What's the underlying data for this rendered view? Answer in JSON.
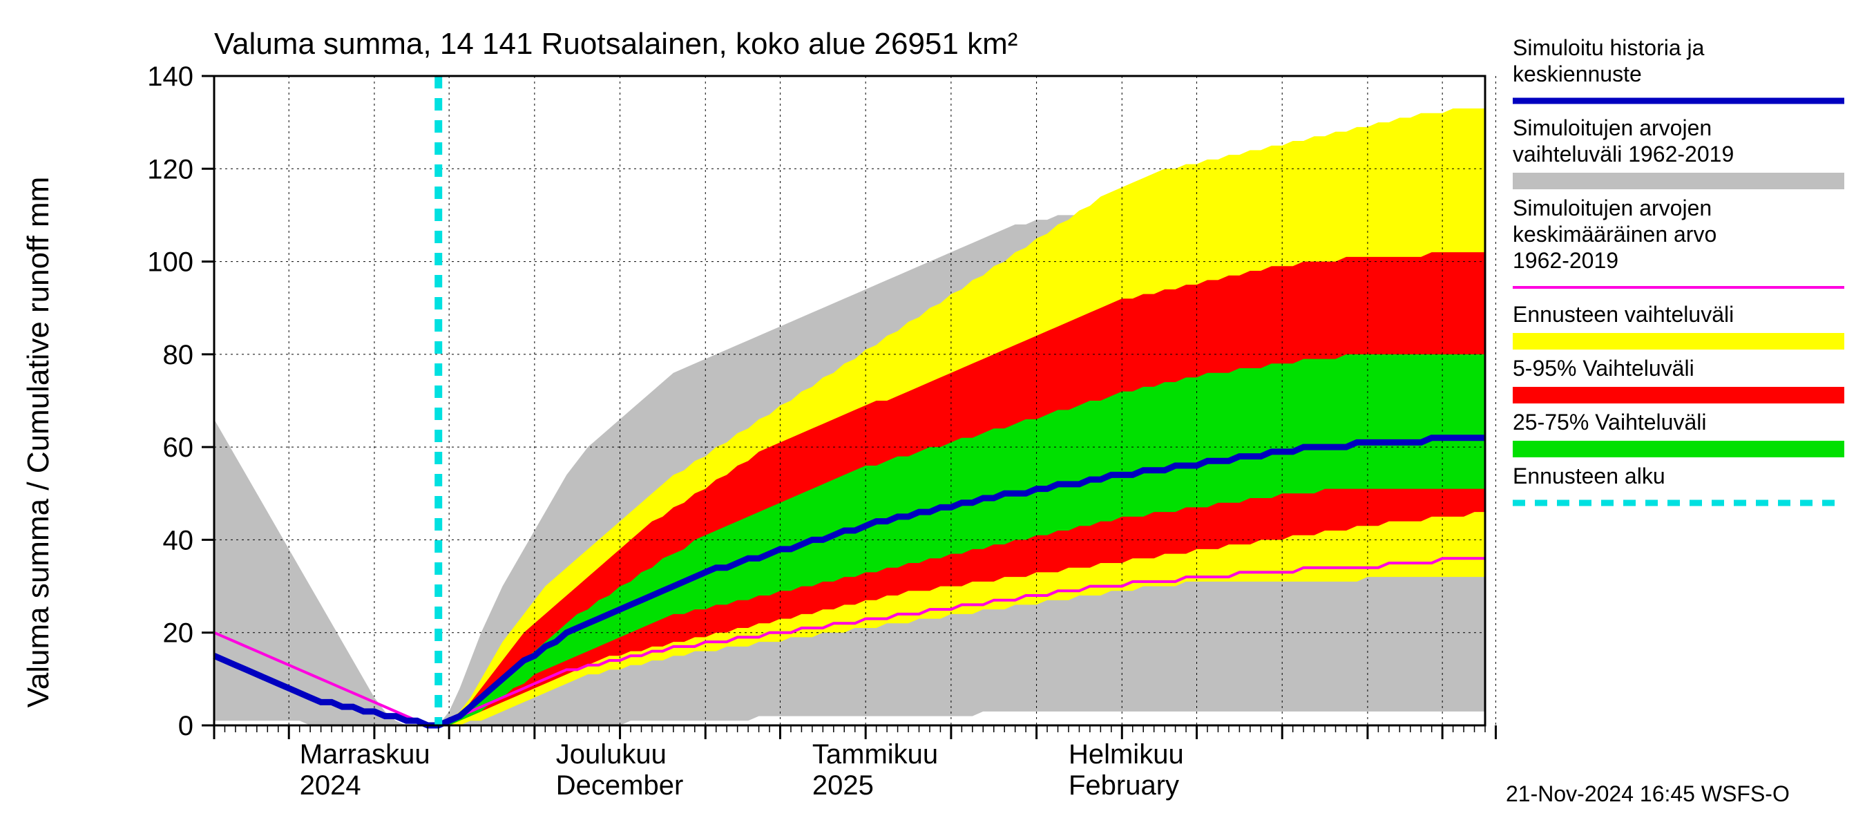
{
  "chart": {
    "type": "area",
    "title": "Valuma summa, 14 141 Ruotsalainen, koko alue 26951 km²",
    "ylabel": "Valuma summa / Cumulative runoff    mm",
    "footer": "21-Nov-2024 16:45 WSFS-O",
    "background_color": "#ffffff",
    "grid_color": "#000000",
    "grid_dash": "3 5",
    "title_fontsize": 44,
    "ylabel_fontsize": 44,
    "tick_fontsize": 40,
    "legend_fontsize": 32,
    "ylim": [
      0,
      140
    ],
    "ytick_step": 20,
    "yticks": [
      0,
      20,
      40,
      60,
      80,
      100,
      120,
      140
    ],
    "x_n": 120,
    "forecast_start_x": 21,
    "x_month_labels": [
      {
        "x": 8,
        "line1": "Marraskuu",
        "line2": "2024"
      },
      {
        "x": 32,
        "line1": "Joulukuu",
        "line2": "December"
      },
      {
        "x": 56,
        "line1": "Tammikuu",
        "line2": "2025"
      },
      {
        "x": 80,
        "line1": "Helmikuu",
        "line2": "February"
      }
    ],
    "x_major_ticks": [
      0,
      7,
      15,
      22,
      30,
      38,
      46,
      53,
      61,
      69,
      77,
      85,
      92,
      100,
      108,
      115,
      120
    ],
    "colors": {
      "gray": "#bfbfbf",
      "yellow": "#ffff00",
      "red": "#ff0000",
      "green": "#00e000",
      "blue": "#0000c0",
      "magenta": "#ff00e0",
      "cyan": "#00e0e0",
      "axis": "#000000"
    },
    "legend": [
      {
        "label1": "Simuloitu historia ja",
        "label2": "keskiennuste",
        "type": "line",
        "color": "#0000c0",
        "width": 9
      },
      {
        "label1": "Simuloitujen arvojen",
        "label2": "vaihteluväli 1962-2019",
        "type": "swatch",
        "color": "#bfbfbf"
      },
      {
        "label1": "Simuloitujen arvojen",
        "label2": "keskimääräinen arvo",
        "label3": " 1962-2019",
        "type": "line",
        "color": "#ff00e0",
        "width": 4
      },
      {
        "label1": "Ennusteen vaihteluväli",
        "type": "swatch",
        "color": "#ffff00"
      },
      {
        "label1": "5-95% Vaihteluväli",
        "type": "swatch",
        "color": "#ff0000"
      },
      {
        "label1": "25-75% Vaihteluväli",
        "type": "swatch",
        "color": "#00e000"
      },
      {
        "label1": "Ennusteen alku",
        "type": "dash",
        "color": "#00e0e0",
        "width": 9
      }
    ],
    "series": {
      "gray_upper": [
        66,
        62,
        58,
        54,
        50,
        46,
        42,
        38,
        34,
        30,
        26,
        22,
        18,
        14,
        10,
        6,
        3,
        1,
        0,
        0,
        0,
        0,
        3,
        8,
        14,
        20,
        25,
        30,
        34,
        38,
        42,
        46,
        50,
        54,
        57,
        60,
        62,
        64,
        66,
        68,
        70,
        72,
        74,
        76,
        77,
        78,
        79,
        80,
        81,
        82,
        83,
        84,
        85,
        86,
        87,
        88,
        89,
        90,
        91,
        92,
        93,
        94,
        95,
        96,
        97,
        98,
        99,
        100,
        101,
        102,
        103,
        104,
        105,
        106,
        107,
        108,
        108,
        109,
        109,
        110,
        110,
        110,
        111,
        111,
        111,
        111,
        111,
        111,
        111,
        111,
        111,
        111,
        111,
        111,
        111,
        111,
        111,
        112,
        113,
        114,
        115,
        116,
        118,
        119,
        120,
        121,
        122,
        123,
        124,
        125,
        125,
        126,
        126,
        127,
        127,
        127,
        128,
        128,
        128,
        128
      ],
      "gray_lower": [
        1,
        1,
        1,
        1,
        1,
        1,
        1,
        1,
        1,
        0,
        0,
        0,
        0,
        0,
        0,
        0,
        0,
        0,
        0,
        0,
        0,
        0,
        0,
        0,
        0,
        0,
        0,
        0,
        0,
        0,
        0,
        0,
        0,
        0,
        0,
        0,
        0,
        0,
        0,
        1,
        1,
        1,
        1,
        1,
        1,
        1,
        1,
        1,
        1,
        1,
        1,
        2,
        2,
        2,
        2,
        2,
        2,
        2,
        2,
        2,
        2,
        2,
        2,
        2,
        2,
        2,
        2,
        2,
        2,
        2,
        2,
        2,
        3,
        3,
        3,
        3,
        3,
        3,
        3,
        3,
        3,
        3,
        3,
        3,
        3,
        3,
        3,
        3,
        3,
        3,
        3,
        3,
        3,
        3,
        3,
        3,
        3,
        3,
        3,
        3,
        3,
        3,
        3,
        3,
        3,
        3,
        3,
        3,
        3,
        3,
        3,
        3,
        3,
        3,
        3,
        3,
        3,
        3,
        3,
        3
      ],
      "yellow_upper": [
        0,
        0,
        0,
        0,
        0,
        0,
        0,
        0,
        0,
        0,
        0,
        0,
        0,
        0,
        0,
        0,
        0,
        0,
        0,
        0,
        0,
        0,
        1,
        3,
        6,
        10,
        14,
        18,
        21,
        24,
        27,
        30,
        32,
        34,
        36,
        38,
        40,
        42,
        44,
        46,
        48,
        50,
        52,
        54,
        55,
        57,
        58,
        60,
        61,
        63,
        64,
        66,
        67,
        69,
        70,
        72,
        73,
        75,
        76,
        78,
        79,
        81,
        82,
        84,
        85,
        87,
        88,
        90,
        91,
        93,
        94,
        96,
        97,
        99,
        100,
        102,
        103,
        105,
        106,
        108,
        109,
        111,
        112,
        114,
        115,
        116,
        117,
        118,
        119,
        120,
        120,
        121,
        121,
        122,
        122,
        123,
        123,
        124,
        124,
        125,
        125,
        126,
        126,
        127,
        127,
        128,
        128,
        129,
        129,
        130,
        130,
        131,
        131,
        132,
        132,
        132,
        133,
        133,
        133,
        133
      ],
      "yellow_lower": [
        0,
        0,
        0,
        0,
        0,
        0,
        0,
        0,
        0,
        0,
        0,
        0,
        0,
        0,
        0,
        0,
        0,
        0,
        0,
        0,
        0,
        0,
        0,
        0,
        1,
        1,
        2,
        3,
        4,
        5,
        6,
        7,
        8,
        9,
        10,
        11,
        11,
        12,
        12,
        13,
        13,
        14,
        14,
        15,
        15,
        16,
        16,
        16,
        17,
        17,
        17,
        18,
        18,
        18,
        19,
        19,
        19,
        20,
        20,
        20,
        21,
        21,
        21,
        22,
        22,
        22,
        23,
        23,
        23,
        24,
        24,
        24,
        25,
        25,
        25,
        26,
        26,
        26,
        27,
        27,
        27,
        28,
        28,
        28,
        29,
        29,
        29,
        30,
        30,
        30,
        30,
        31,
        31,
        31,
        31,
        31,
        31,
        31,
        31,
        31,
        31,
        31,
        31,
        31,
        31,
        31,
        31,
        31,
        32,
        32,
        32,
        32,
        32,
        32,
        32,
        32,
        32,
        32,
        32,
        32
      ],
      "red_upper": [
        0,
        0,
        0,
        0,
        0,
        0,
        0,
        0,
        0,
        0,
        0,
        0,
        0,
        0,
        0,
        0,
        0,
        0,
        0,
        0,
        0,
        0,
        1,
        2,
        5,
        8,
        11,
        14,
        17,
        20,
        22,
        24,
        26,
        28,
        30,
        32,
        34,
        36,
        38,
        40,
        42,
        44,
        45,
        47,
        48,
        50,
        51,
        53,
        54,
        56,
        57,
        59,
        60,
        61,
        62,
        63,
        64,
        65,
        66,
        67,
        68,
        69,
        70,
        70,
        71,
        72,
        73,
        74,
        75,
        76,
        77,
        78,
        79,
        80,
        81,
        82,
        83,
        84,
        85,
        86,
        87,
        88,
        89,
        90,
        91,
        92,
        92,
        93,
        93,
        94,
        94,
        95,
        95,
        96,
        96,
        97,
        97,
        98,
        98,
        99,
        99,
        99,
        100,
        100,
        100,
        100,
        101,
        101,
        101,
        101,
        101,
        101,
        101,
        101,
        102,
        102,
        102,
        102,
        102,
        102
      ],
      "red_lower": [
        0,
        0,
        0,
        0,
        0,
        0,
        0,
        0,
        0,
        0,
        0,
        0,
        0,
        0,
        0,
        0,
        0,
        0,
        0,
        0,
        0,
        0,
        0,
        1,
        2,
        3,
        4,
        5,
        6,
        7,
        8,
        9,
        10,
        11,
        12,
        13,
        14,
        15,
        15,
        16,
        16,
        17,
        17,
        18,
        18,
        19,
        19,
        20,
        20,
        21,
        21,
        22,
        22,
        23,
        23,
        24,
        24,
        25,
        25,
        26,
        26,
        27,
        27,
        28,
        28,
        29,
        29,
        29,
        30,
        30,
        30,
        31,
        31,
        31,
        32,
        32,
        32,
        33,
        33,
        33,
        34,
        34,
        34,
        35,
        35,
        35,
        36,
        36,
        36,
        37,
        37,
        37,
        38,
        38,
        38,
        39,
        39,
        39,
        40,
        40,
        40,
        41,
        41,
        41,
        42,
        42,
        42,
        43,
        43,
        43,
        44,
        44,
        44,
        44,
        45,
        45,
        45,
        45,
        46,
        46
      ],
      "green_upper": [
        0,
        0,
        0,
        0,
        0,
        0,
        0,
        0,
        0,
        0,
        0,
        0,
        0,
        0,
        0,
        0,
        0,
        0,
        0,
        0,
        0,
        0,
        1,
        2,
        4,
        6,
        8,
        10,
        12,
        14,
        16,
        18,
        20,
        22,
        24,
        25,
        27,
        28,
        30,
        31,
        33,
        34,
        36,
        37,
        38,
        40,
        41,
        42,
        43,
        44,
        45,
        46,
        47,
        48,
        49,
        50,
        51,
        52,
        53,
        54,
        55,
        56,
        56,
        57,
        58,
        58,
        59,
        60,
        60,
        61,
        62,
        62,
        63,
        64,
        64,
        65,
        66,
        66,
        67,
        68,
        68,
        69,
        70,
        70,
        71,
        72,
        72,
        73,
        73,
        74,
        74,
        75,
        75,
        76,
        76,
        76,
        77,
        77,
        77,
        78,
        78,
        78,
        79,
        79,
        79,
        79,
        80,
        80,
        80,
        80,
        80,
        80,
        80,
        80,
        80,
        80,
        80,
        80,
        80,
        80
      ],
      "green_lower": [
        0,
        0,
        0,
        0,
        0,
        0,
        0,
        0,
        0,
        0,
        0,
        0,
        0,
        0,
        0,
        0,
        0,
        0,
        0,
        0,
        0,
        0,
        0,
        1,
        2,
        3,
        5,
        6,
        8,
        9,
        11,
        12,
        13,
        14,
        15,
        16,
        17,
        18,
        19,
        20,
        21,
        22,
        23,
        24,
        24,
        25,
        25,
        26,
        26,
        27,
        27,
        28,
        28,
        29,
        29,
        30,
        30,
        31,
        31,
        32,
        32,
        33,
        33,
        34,
        34,
        35,
        35,
        36,
        36,
        37,
        37,
        38,
        38,
        39,
        39,
        40,
        40,
        41,
        41,
        42,
        42,
        43,
        43,
        44,
        44,
        45,
        45,
        45,
        46,
        46,
        46,
        47,
        47,
        47,
        48,
        48,
        48,
        49,
        49,
        49,
        50,
        50,
        50,
        50,
        51,
        51,
        51,
        51,
        51,
        51,
        51,
        51,
        51,
        51,
        51,
        51,
        51,
        51,
        51,
        51
      ],
      "blue": [
        15,
        14,
        13,
        12,
        11,
        10,
        9,
        8,
        7,
        6,
        5,
        5,
        4,
        4,
        3,
        3,
        2,
        2,
        1,
        1,
        0,
        0,
        1,
        2,
        4,
        6,
        8,
        10,
        12,
        14,
        15,
        17,
        18,
        20,
        21,
        22,
        23,
        24,
        25,
        26,
        27,
        28,
        29,
        30,
        31,
        32,
        33,
        34,
        34,
        35,
        36,
        36,
        37,
        38,
        38,
        39,
        40,
        40,
        41,
        42,
        42,
        43,
        44,
        44,
        45,
        45,
        46,
        46,
        47,
        47,
        48,
        48,
        49,
        49,
        50,
        50,
        50,
        51,
        51,
        52,
        52,
        52,
        53,
        53,
        54,
        54,
        54,
        55,
        55,
        55,
        56,
        56,
        56,
        57,
        57,
        57,
        58,
        58,
        58,
        59,
        59,
        59,
        60,
        60,
        60,
        60,
        60,
        61,
        61,
        61,
        61,
        61,
        61,
        61,
        62,
        62,
        62,
        62,
        62,
        62
      ],
      "magenta": [
        20,
        19,
        18,
        17,
        16,
        15,
        14,
        13,
        12,
        11,
        10,
        9,
        8,
        7,
        6,
        5,
        4,
        3,
        2,
        1,
        0,
        0,
        1,
        2,
        3,
        4,
        5,
        6,
        7,
        8,
        9,
        10,
        11,
        12,
        12,
        13,
        13,
        14,
        14,
        15,
        15,
        16,
        16,
        17,
        17,
        17,
        18,
        18,
        18,
        19,
        19,
        19,
        20,
        20,
        20,
        21,
        21,
        21,
        22,
        22,
        22,
        23,
        23,
        23,
        24,
        24,
        24,
        25,
        25,
        25,
        26,
        26,
        26,
        27,
        27,
        27,
        28,
        28,
        28,
        29,
        29,
        29,
        30,
        30,
        30,
        30,
        31,
        31,
        31,
        31,
        31,
        32,
        32,
        32,
        32,
        32,
        33,
        33,
        33,
        33,
        33,
        33,
        34,
        34,
        34,
        34,
        34,
        34,
        34,
        34,
        35,
        35,
        35,
        35,
        35,
        36,
        36,
        36,
        36,
        36
      ]
    }
  }
}
